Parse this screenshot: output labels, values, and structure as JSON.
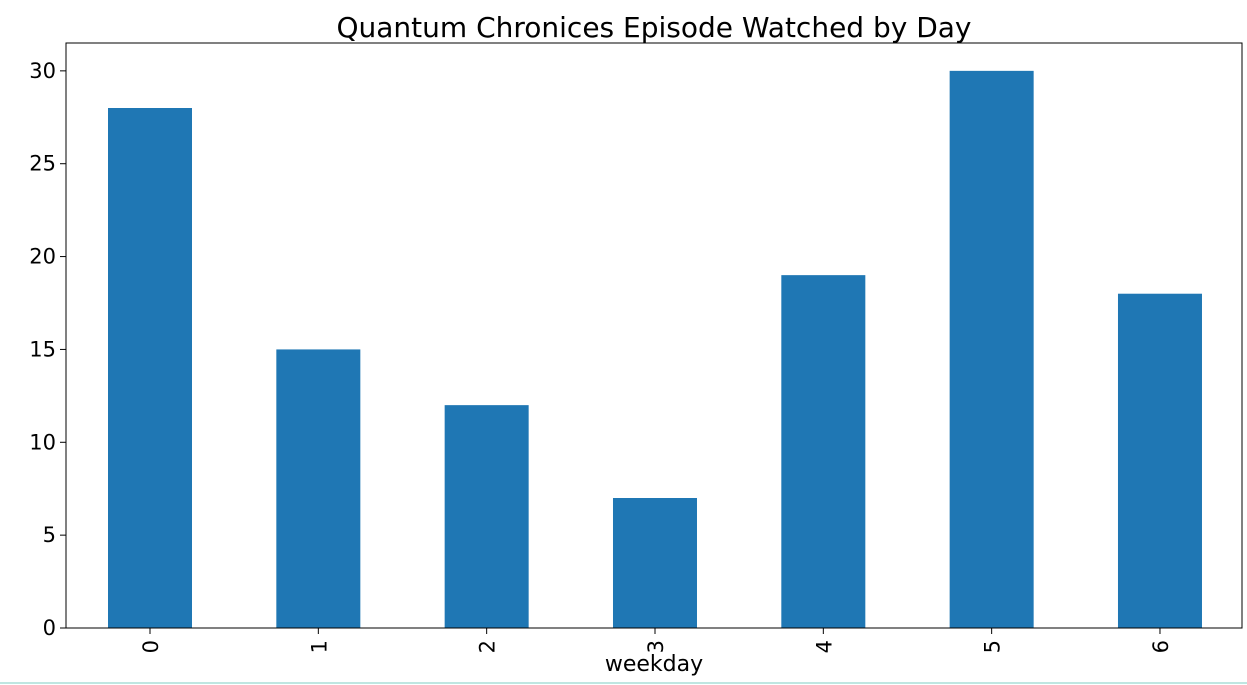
{
  "chart_data": {
    "type": "bar",
    "title": "Quantum Chronices Episode Watched by Day",
    "xlabel": "weekday",
    "ylabel": "",
    "categories": [
      "0",
      "1",
      "2",
      "3",
      "4",
      "5",
      "6"
    ],
    "values": [
      28,
      15,
      12,
      7,
      19,
      30,
      18
    ],
    "ylim": [
      0,
      31.5
    ],
    "yticks": [
      0,
      5,
      10,
      15,
      20,
      25,
      30
    ],
    "bar_color": "#1f77b4",
    "grid": false,
    "legend": "none"
  }
}
